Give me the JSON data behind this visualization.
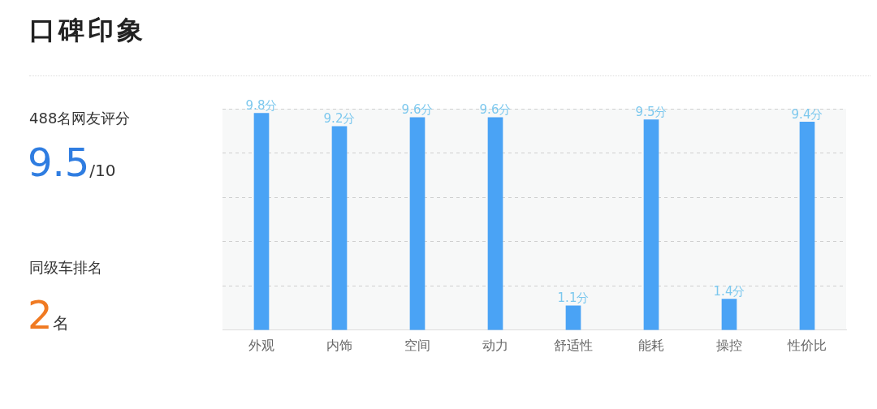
{
  "chart_data": {
    "type": "bar",
    "title": "口碑印象",
    "categories": [
      "外观",
      "内饰",
      "空间",
      "动力",
      "舒适性",
      "能耗",
      "操控",
      "性价比"
    ],
    "values": [
      9.8,
      9.2,
      9.6,
      9.6,
      1.1,
      9.5,
      1.4,
      9.4
    ],
    "value_labels": [
      "9.8分",
      "9.2分",
      "9.6分",
      "9.6分",
      "1.1分",
      "9.5分",
      "1.4分",
      "9.4分"
    ],
    "color": "#4aa3f5",
    "ylim": [
      0,
      10
    ],
    "yticks": [
      {
        "value": 0,
        "label": null
      },
      {
        "value": 2,
        "label": null
      },
      {
        "value": 4,
        "label": null
      },
      {
        "value": 6,
        "label": null
      },
      {
        "value": 8,
        "label": null
      },
      {
        "value": 10,
        "label": null
      }
    ],
    "grid": "y",
    "tick_labels": "x",
    "annotations": [
      "488名网友评分",
      "9.5/10",
      "同级车排名",
      "2名"
    ]
  }
}
